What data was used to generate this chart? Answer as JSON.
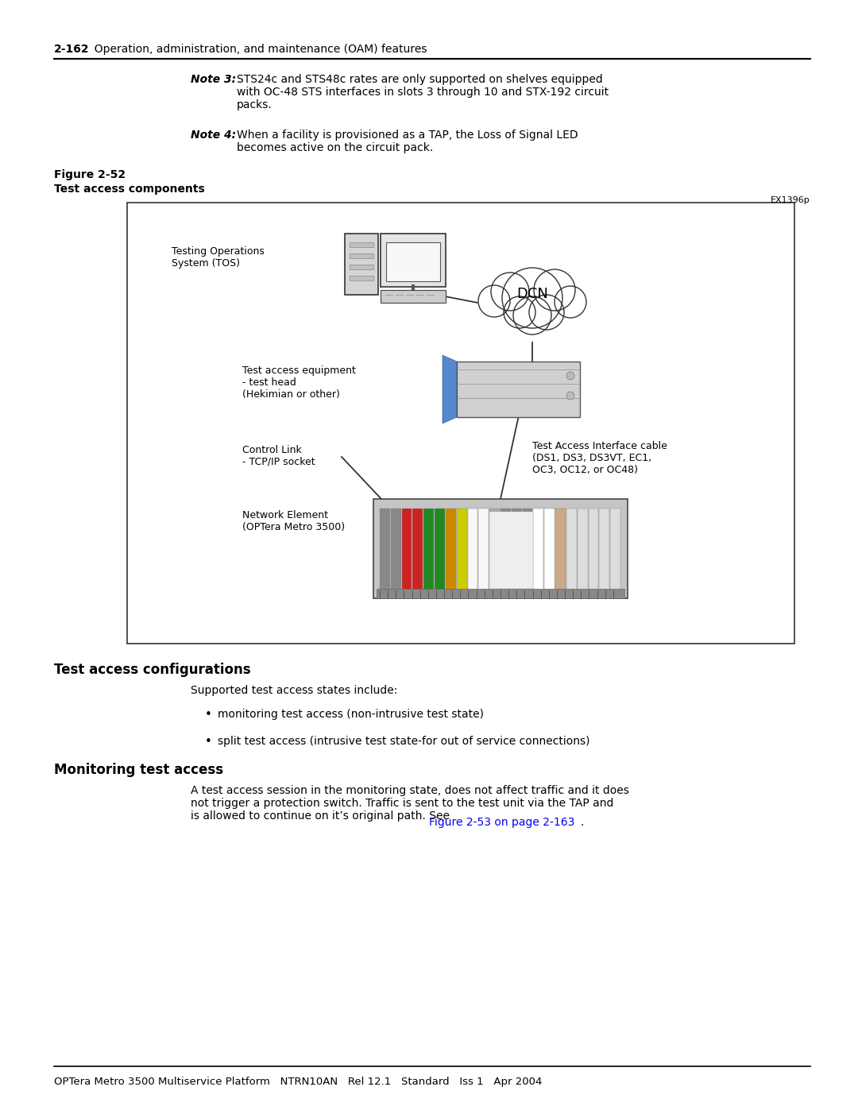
{
  "bg_color": "#ffffff",
  "page_width": 10.8,
  "page_height": 13.97,
  "top_label_bold": "2-162",
  "top_label_rest": "  Operation, administration, and maintenance (OAM) features",
  "note3_bold": "Note 3:",
  "note3_text": "STS24c and STS48c rates are only supported on shelves equipped\nwith OC-48 STS interfaces in slots 3 through 10 and STX-192 circuit\npacks.",
  "note4_bold": "Note 4:",
  "note4_text": "When a facility is provisioned as a TAP, the Loss of Signal LED\nbecomes active on the circuit pack.",
  "fig_label": "Figure 2-52",
  "fig_title": "Test access components",
  "fig_ref": "EX1396p",
  "section_title": "Test access configurations",
  "section_body": "Supported test access states include:",
  "bullet1": "monitoring test access (non-intrusive test state)",
  "bullet2": "split test access (intrusive test state-for out of service connections)",
  "subsection_title": "Monitoring test access",
  "subsection_body": "A test access session in the monitoring state, does not affect traffic and it does\nnot trigger a protection switch. Traffic is sent to the test unit via the TAP and\nis allowed to continue on it’s original path. See ",
  "subsection_link": "Figure 2-53 on page 2-163",
  "footer_text": "OPTera Metro 3500 Multiservice Platform   NTRN10AN   Rel 12.1   Standard   Iss 1   Apr 2004",
  "link_color": "#0000ee",
  "text_color": "#000000",
  "label_tos": "Testing Operations\nSystem (TOS)",
  "label_testhead": "Test access equipment\n- test head\n(Hekimian or other)",
  "label_control": "Control Link\n- TCP/IP socket",
  "label_cable": "Test Access Interface cable\n(DS1, DS3, DS3VT, EC1,\nOC3, OC12, or OC48)",
  "label_ne": "Network Element\n(OPTera Metro 3500)",
  "label_dcn": "DCN"
}
